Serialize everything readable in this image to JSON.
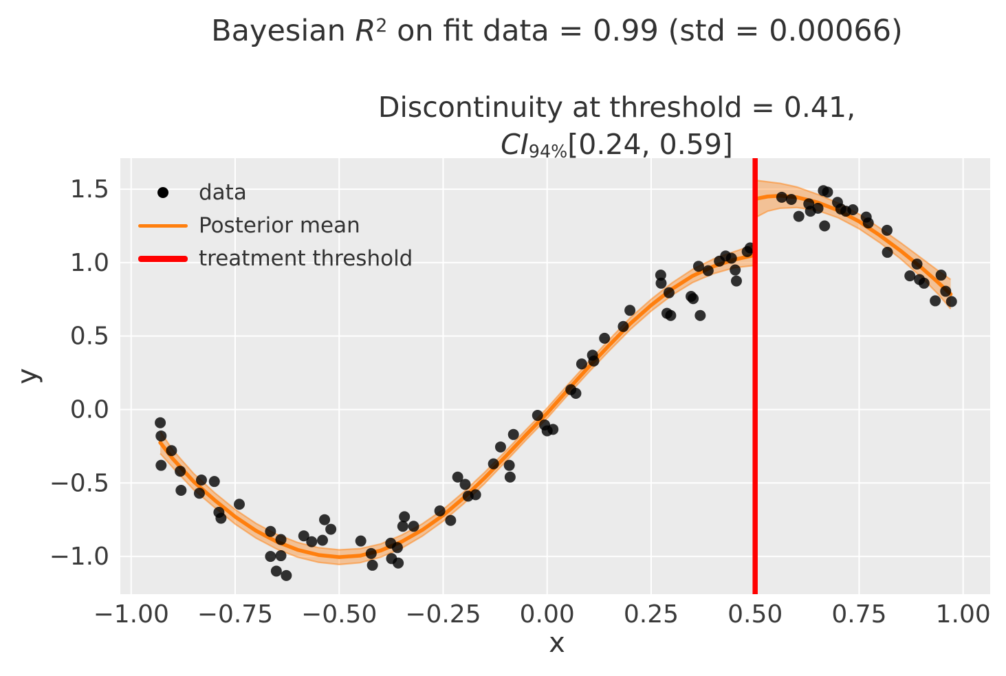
{
  "figure": {
    "title": {
      "pre": "Bayesian ",
      "var": "R",
      "sup": "2",
      "post": " on fit data = 0.99 (std = 0.00066)"
    },
    "axes_title": {
      "line1": "Discontinuity at threshold = 0.41,",
      "ci_var": "CI",
      "ci_sub": "94%",
      "ci_post": "[0.24, 0.59]"
    }
  },
  "axes": {
    "xlabel": "x",
    "ylabel": "y"
  },
  "legend": {
    "items": [
      {
        "label": "data",
        "marker": "dot",
        "color": "#000000"
      },
      {
        "label": "Posterior mean",
        "marker": "line",
        "color": "#ff7f0e"
      },
      {
        "label": "treatment threshold",
        "marker": "thick-line",
        "color": "#ff0000"
      }
    ]
  },
  "chart_data": {
    "type": "scatter",
    "title": "Bayesian R2 on fit data = 0.99 (std = 0.00066)",
    "axes_title": "Discontinuity at threshold = 0.41, CI94%[0.24, 0.59]",
    "xlabel": "x",
    "ylabel": "y",
    "xlim": [
      -1.026,
      1.065
    ],
    "ylim": [
      -1.257,
      1.711
    ],
    "grid": true,
    "background": "#ebebeb",
    "grid_color": "#ffffff",
    "text_color": "#3a3a3a",
    "x_ticks": [
      {
        "v": -1.0,
        "label": "−1.00"
      },
      {
        "v": -0.75,
        "label": "−0.75"
      },
      {
        "v": -0.5,
        "label": "−0.50"
      },
      {
        "v": -0.25,
        "label": "−0.25"
      },
      {
        "v": 0.0,
        "label": "0.00"
      },
      {
        "v": 0.25,
        "label": "0.25"
      },
      {
        "v": 0.5,
        "label": "0.50"
      },
      {
        "v": 0.75,
        "label": "0.75"
      },
      {
        "v": 1.0,
        "label": "1.00"
      }
    ],
    "y_ticks": [
      {
        "v": 1.5,
        "label": "1.5"
      },
      {
        "v": 1.0,
        "label": "1.0"
      },
      {
        "v": 0.5,
        "label": "0.5"
      },
      {
        "v": 0.0,
        "label": "0.0"
      },
      {
        "v": -0.5,
        "label": "−0.5"
      },
      {
        "v": -1.0,
        "label": "−1.0"
      }
    ],
    "threshold": {
      "x": 0.5,
      "color": "#ff0000",
      "label": "treatment threshold",
      "width": 7.5
    },
    "posterior_mean": {
      "name": "Posterior mean",
      "color": "#ff7f0e",
      "line_width": 5.5,
      "band_opacity": 0.38,
      "segments": [
        {
          "points_x_mean_hw": [
            [
              -0.93,
              -0.225,
              0.075
            ],
            [
              -0.9,
              -0.335,
              0.06
            ],
            [
              -0.85,
              -0.49,
              0.055
            ],
            [
              -0.8,
              -0.615,
              0.05
            ],
            [
              -0.75,
              -0.73,
              0.05
            ],
            [
              -0.7,
              -0.825,
              0.05
            ],
            [
              -0.65,
              -0.9,
              0.05
            ],
            [
              -0.6,
              -0.955,
              0.05
            ],
            [
              -0.55,
              -0.99,
              0.05
            ],
            [
              -0.5,
              -1.005,
              0.05
            ],
            [
              -0.45,
              -0.995,
              0.048
            ],
            [
              -0.4,
              -0.96,
              0.045
            ],
            [
              -0.35,
              -0.9,
              0.045
            ],
            [
              -0.3,
              -0.82,
              0.042
            ],
            [
              -0.25,
              -0.72,
              0.04
            ],
            [
              -0.2,
              -0.6,
              0.04
            ],
            [
              -0.15,
              -0.465,
              0.038
            ],
            [
              -0.1,
              -0.32,
              0.036
            ],
            [
              -0.05,
              -0.17,
              0.035
            ],
            [
              0.0,
              -0.025,
              0.035
            ],
            [
              0.05,
              0.135,
              0.035
            ],
            [
              0.1,
              0.29,
              0.036
            ],
            [
              0.15,
              0.44,
              0.038
            ],
            [
              0.2,
              0.585,
              0.04
            ],
            [
              0.25,
              0.71,
              0.04
            ],
            [
              0.3,
              0.82,
              0.042
            ],
            [
              0.35,
              0.91,
              0.045
            ],
            [
              0.4,
              0.975,
              0.05
            ],
            [
              0.45,
              1.02,
              0.055
            ],
            [
              0.497,
              1.05,
              0.07
            ]
          ]
        },
        {
          "points_x_mean_hw": [
            [
              0.503,
              1.435,
              0.125
            ],
            [
              0.53,
              1.45,
              0.1
            ],
            [
              0.56,
              1.455,
              0.085
            ],
            [
              0.6,
              1.445,
              0.07
            ],
            [
              0.65,
              1.41,
              0.055
            ],
            [
              0.7,
              1.355,
              0.05
            ],
            [
              0.75,
              1.28,
              0.05
            ],
            [
              0.8,
              1.185,
              0.05
            ],
            [
              0.85,
              1.08,
              0.055
            ],
            [
              0.9,
              0.965,
              0.065
            ],
            [
              0.94,
              0.865,
              0.08
            ],
            [
              0.97,
              0.785,
              0.1
            ]
          ]
        }
      ]
    },
    "scatter": {
      "name": "data",
      "color": "#000000",
      "opacity": 0.8,
      "radius": 8,
      "points": [
        [
          -0.93,
          -0.09
        ],
        [
          -0.928,
          -0.18
        ],
        [
          -0.928,
          -0.38
        ],
        [
          -0.903,
          -0.28
        ],
        [
          -0.882,
          -0.42
        ],
        [
          -0.88,
          -0.55
        ],
        [
          -0.836,
          -0.57
        ],
        [
          -0.831,
          -0.48
        ],
        [
          -0.8,
          -0.49
        ],
        [
          -0.789,
          -0.7
        ],
        [
          -0.784,
          -0.74
        ],
        [
          -0.74,
          -0.645
        ],
        [
          -0.665,
          -0.83
        ],
        [
          -0.665,
          -1.0
        ],
        [
          -0.651,
          -1.1
        ],
        [
          -0.64,
          -0.885
        ],
        [
          -0.64,
          -0.995
        ],
        [
          -0.627,
          -1.13
        ],
        [
          -0.585,
          -0.86
        ],
        [
          -0.566,
          -0.9
        ],
        [
          -0.54,
          -0.89
        ],
        [
          -0.535,
          -0.75
        ],
        [
          -0.52,
          -0.815
        ],
        [
          -0.448,
          -0.895
        ],
        [
          -0.423,
          -0.98
        ],
        [
          -0.42,
          -1.06
        ],
        [
          -0.376,
          -0.91
        ],
        [
          -0.374,
          -1.015
        ],
        [
          -0.36,
          -0.94
        ],
        [
          -0.358,
          -1.045
        ],
        [
          -0.347,
          -0.795
        ],
        [
          -0.343,
          -0.73
        ],
        [
          -0.321,
          -0.795
        ],
        [
          -0.258,
          -0.69
        ],
        [
          -0.232,
          -0.755
        ],
        [
          -0.215,
          -0.46
        ],
        [
          -0.197,
          -0.51
        ],
        [
          -0.19,
          -0.59
        ],
        [
          -0.172,
          -0.58
        ],
        [
          -0.129,
          -0.37
        ],
        [
          -0.112,
          -0.255
        ],
        [
          -0.091,
          -0.38
        ],
        [
          -0.089,
          -0.46
        ],
        [
          -0.081,
          -0.17
        ],
        [
          -0.023,
          -0.04
        ],
        [
          -0.006,
          -0.105
        ],
        [
          0.0,
          -0.145
        ],
        [
          0.014,
          -0.135
        ],
        [
          0.057,
          0.135
        ],
        [
          0.069,
          0.11
        ],
        [
          0.083,
          0.31
        ],
        [
          0.109,
          0.37
        ],
        [
          0.112,
          0.33
        ],
        [
          0.138,
          0.485
        ],
        [
          0.183,
          0.565
        ],
        [
          0.199,
          0.675
        ],
        [
          0.273,
          0.915
        ],
        [
          0.274,
          0.86
        ],
        [
          0.288,
          0.655
        ],
        [
          0.293,
          0.795
        ],
        [
          0.297,
          0.64
        ],
        [
          0.346,
          0.77
        ],
        [
          0.351,
          0.755
        ],
        [
          0.364,
          0.975
        ],
        [
          0.368,
          0.64
        ],
        [
          0.387,
          0.945
        ],
        [
          0.414,
          1.01
        ],
        [
          0.429,
          1.045
        ],
        [
          0.443,
          1.03
        ],
        [
          0.452,
          0.95
        ],
        [
          0.455,
          0.875
        ],
        [
          0.481,
          1.075
        ],
        [
          0.488,
          1.1
        ],
        [
          0.564,
          1.445
        ],
        [
          0.587,
          1.43
        ],
        [
          0.605,
          1.315
        ],
        [
          0.629,
          1.4
        ],
        [
          0.633,
          1.35
        ],
        [
          0.651,
          1.37
        ],
        [
          0.664,
          1.49
        ],
        [
          0.674,
          1.48
        ],
        [
          0.667,
          1.25
        ],
        [
          0.698,
          1.41
        ],
        [
          0.706,
          1.365
        ],
        [
          0.718,
          1.35
        ],
        [
          0.735,
          1.36
        ],
        [
          0.767,
          1.31
        ],
        [
          0.772,
          1.27
        ],
        [
          0.817,
          1.22
        ],
        [
          0.818,
          1.07
        ],
        [
          0.872,
          0.91
        ],
        [
          0.889,
          0.99
        ],
        [
          0.895,
          0.885
        ],
        [
          0.906,
          0.86
        ],
        [
          0.933,
          0.74
        ],
        [
          0.947,
          0.915
        ],
        [
          0.958,
          0.805
        ],
        [
          0.972,
          0.735
        ]
      ]
    }
  }
}
